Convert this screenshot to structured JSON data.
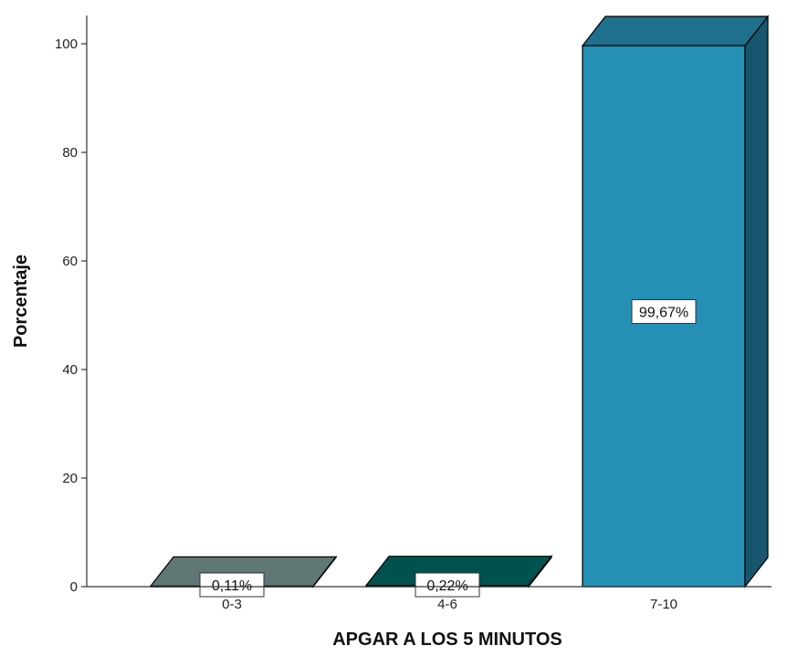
{
  "chart_data": {
    "type": "bar",
    "style": "3d",
    "categories": [
      "0-3",
      "4-6",
      "7-10"
    ],
    "values": [
      0.11,
      0.22,
      99.67
    ],
    "data_labels": [
      "0,11%",
      "0,22%",
      "99,67%"
    ],
    "colors": [
      "#7a9996",
      "#006964",
      "#268fb4"
    ],
    "xlabel": "APGAR A LOS 5 MINUTOS",
    "ylabel": "Porcentaje",
    "ylim": [
      0,
      100
    ],
    "yticks": [
      0,
      20,
      40,
      60,
      80,
      100
    ],
    "grid": false,
    "legend": "none"
  }
}
